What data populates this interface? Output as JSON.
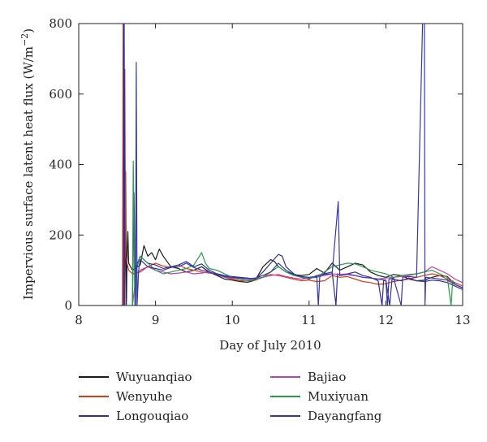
{
  "chart_data": {
    "type": "line",
    "title": "",
    "xlabel": "Day of July 2010",
    "ylabel": "Impervious surface latent heat flux (W/m",
    "ylabel_sup": "−2",
    "ylabel_close": ")",
    "xlim": [
      8,
      13
    ],
    "ylim": [
      0,
      800
    ],
    "xticks": [
      8,
      9,
      10,
      11,
      12,
      13
    ],
    "yticks": [
      0,
      200,
      400,
      600,
      800
    ],
    "xtick_labels": [
      "8",
      "9",
      "10",
      "11",
      "12",
      "13"
    ],
    "ytick_labels": [
      "0",
      "200",
      "400",
      "600",
      "800"
    ],
    "grid": false,
    "legend_position": "below",
    "series": [
      {
        "name": "Wuyuanqiao",
        "color": "#1a1a1a",
        "values": [
          [
            8.55,
            0
          ],
          [
            8.6,
            0
          ],
          [
            8.61,
            380
          ],
          [
            8.62,
            0
          ],
          [
            8.63,
            150
          ],
          [
            8.64,
            210
          ],
          [
            8.65,
            120
          ],
          [
            8.7,
            100
          ],
          [
            8.8,
            115
          ],
          [
            8.85,
            170
          ],
          [
            8.9,
            140
          ],
          [
            8.95,
            150
          ],
          [
            9.0,
            130
          ],
          [
            9.05,
            160
          ],
          [
            9.1,
            140
          ],
          [
            9.2,
            110
          ],
          [
            9.3,
            105
          ],
          [
            9.4,
            95
          ],
          [
            9.5,
            100
          ],
          [
            9.6,
            110
          ],
          [
            9.7,
            95
          ],
          [
            9.8,
            85
          ],
          [
            9.9,
            75
          ],
          [
            10.0,
            72
          ],
          [
            10.1,
            68
          ],
          [
            10.2,
            66
          ],
          [
            10.3,
            72
          ],
          [
            10.4,
            110
          ],
          [
            10.5,
            130
          ],
          [
            10.55,
            125
          ],
          [
            10.6,
            110
          ],
          [
            10.7,
            95
          ],
          [
            10.8,
            88
          ],
          [
            10.9,
            85
          ],
          [
            11.0,
            88
          ],
          [
            11.1,
            105
          ],
          [
            11.2,
            92
          ],
          [
            11.3,
            120
          ],
          [
            11.4,
            100
          ],
          [
            11.5,
            110
          ],
          [
            11.6,
            120
          ],
          [
            11.7,
            115
          ],
          [
            11.8,
            95
          ],
          [
            11.9,
            85
          ],
          [
            12.0,
            80
          ],
          [
            12.1,
            88
          ],
          [
            12.2,
            85
          ],
          [
            12.3,
            75
          ],
          [
            12.4,
            70
          ],
          [
            12.5,
            72
          ],
          [
            12.6,
            80
          ],
          [
            12.7,
            85
          ],
          [
            12.8,
            82
          ],
          [
            12.9,
            60
          ],
          [
            13.0,
            50
          ]
        ]
      },
      {
        "name": "Wenyuhe",
        "color": "#d63c1c",
        "values": [
          [
            8.55,
            0
          ],
          [
            8.57,
            0
          ],
          [
            8.58,
            1000
          ],
          [
            8.59,
            0
          ],
          [
            8.6,
            670
          ],
          [
            8.61,
            140
          ],
          [
            8.65,
            100
          ],
          [
            8.7,
            90
          ],
          [
            8.8,
            95
          ],
          [
            8.9,
            110
          ],
          [
            9.0,
            120
          ],
          [
            9.1,
            112
          ],
          [
            9.2,
            108
          ],
          [
            9.3,
            115
          ],
          [
            9.4,
            105
          ],
          [
            9.5,
            100
          ],
          [
            9.6,
            95
          ],
          [
            9.7,
            92
          ],
          [
            9.8,
            90
          ],
          [
            9.9,
            80
          ],
          [
            10.0,
            75
          ],
          [
            10.1,
            70
          ],
          [
            10.2,
            72
          ],
          [
            10.3,
            75
          ],
          [
            10.4,
            80
          ],
          [
            10.5,
            88
          ],
          [
            10.6,
            85
          ],
          [
            10.7,
            80
          ],
          [
            10.8,
            75
          ],
          [
            10.9,
            70
          ],
          [
            11.0,
            72
          ],
          [
            11.1,
            68
          ],
          [
            11.2,
            70
          ],
          [
            11.3,
            85
          ],
          [
            11.4,
            80
          ],
          [
            11.5,
            82
          ],
          [
            11.6,
            75
          ],
          [
            11.7,
            68
          ],
          [
            11.8,
            65
          ],
          [
            11.9,
            60
          ],
          [
            12.0,
            62
          ],
          [
            12.1,
            68
          ],
          [
            12.2,
            72
          ],
          [
            12.3,
            75
          ],
          [
            12.4,
            80
          ],
          [
            12.5,
            85
          ],
          [
            12.6,
            90
          ],
          [
            12.7,
            85
          ],
          [
            12.8,
            75
          ],
          [
            12.9,
            65
          ],
          [
            13.0,
            55
          ]
        ]
      },
      {
        "name": "Longouqiao",
        "color": "#2e2e9a",
        "values": [
          [
            8.55,
            0
          ],
          [
            8.58,
            0
          ],
          [
            8.59,
            1000
          ],
          [
            8.6,
            0
          ],
          [
            8.65,
            0
          ],
          [
            8.7,
            0
          ],
          [
            8.72,
            320
          ],
          [
            8.74,
            0
          ],
          [
            8.75,
            110
          ],
          [
            8.8,
            140
          ],
          [
            8.9,
            120
          ],
          [
            9.0,
            115
          ],
          [
            9.1,
            105
          ],
          [
            9.2,
            110
          ],
          [
            9.3,
            115
          ],
          [
            9.4,
            125
          ],
          [
            9.5,
            110
          ],
          [
            9.6,
            118
          ],
          [
            9.7,
            100
          ],
          [
            9.8,
            90
          ],
          [
            9.9,
            85
          ],
          [
            10.0,
            82
          ],
          [
            10.1,
            80
          ],
          [
            10.2,
            78
          ],
          [
            10.3,
            75
          ],
          [
            10.4,
            95
          ],
          [
            10.5,
            120
          ],
          [
            10.6,
            145
          ],
          [
            10.65,
            140
          ],
          [
            10.7,
            110
          ],
          [
            10.8,
            90
          ],
          [
            10.9,
            80
          ],
          [
            11.0,
            75
          ],
          [
            11.1,
            85
          ],
          [
            11.2,
            90
          ],
          [
            11.3,
            95
          ],
          [
            11.35,
            0
          ],
          [
            11.37,
            90
          ],
          [
            11.4,
            85
          ],
          [
            11.5,
            90
          ],
          [
            11.6,
            95
          ],
          [
            11.7,
            85
          ],
          [
            11.8,
            80
          ],
          [
            11.9,
            70
          ],
          [
            11.95,
            0
          ],
          [
            11.97,
            70
          ],
          [
            12.0,
            72
          ],
          [
            12.05,
            0
          ],
          [
            12.08,
            75
          ],
          [
            12.2,
            70
          ],
          [
            12.3,
            78
          ],
          [
            12.4,
            70
          ],
          [
            12.5,
            68
          ],
          [
            12.6,
            72
          ],
          [
            12.7,
            70
          ],
          [
            12.8,
            65
          ],
          [
            12.9,
            55
          ],
          [
            13.0,
            45
          ]
        ]
      },
      {
        "name": "Bajiao",
        "color": "#c040b0",
        "values": [
          [
            8.7,
            0
          ],
          [
            8.75,
            90
          ],
          [
            8.8,
            100
          ],
          [
            8.9,
            110
          ],
          [
            9.0,
            100
          ],
          [
            9.1,
            95
          ],
          [
            9.2,
            90
          ],
          [
            9.3,
            92
          ],
          [
            9.4,
            95
          ],
          [
            9.5,
            90
          ],
          [
            9.6,
            92
          ],
          [
            9.7,
            95
          ],
          [
            9.8,
            88
          ],
          [
            9.9,
            80
          ],
          [
            10.0,
            78
          ],
          [
            10.1,
            75
          ],
          [
            10.2,
            72
          ],
          [
            10.3,
            78
          ],
          [
            10.4,
            80
          ],
          [
            10.5,
            85
          ],
          [
            10.6,
            88
          ],
          [
            10.7,
            82
          ],
          [
            10.8,
            78
          ],
          [
            10.9,
            75
          ],
          [
            11.0,
            78
          ],
          [
            11.1,
            80
          ],
          [
            11.2,
            85
          ],
          [
            11.3,
            90
          ],
          [
            11.4,
            88
          ],
          [
            11.5,
            90
          ],
          [
            11.6,
            85
          ],
          [
            11.7,
            80
          ],
          [
            11.8,
            78
          ],
          [
            11.9,
            75
          ],
          [
            12.0,
            78
          ],
          [
            12.1,
            80
          ],
          [
            12.2,
            82
          ],
          [
            12.3,
            85
          ],
          [
            12.4,
            90
          ],
          [
            12.5,
            95
          ],
          [
            12.6,
            110
          ],
          [
            12.7,
            100
          ],
          [
            12.8,
            90
          ],
          [
            12.9,
            75
          ],
          [
            13.0,
            65
          ]
        ]
      },
      {
        "name": "Muxiyuan",
        "color": "#2a9a46",
        "values": [
          [
            8.6,
            0
          ],
          [
            8.65,
            0
          ],
          [
            8.7,
            0
          ],
          [
            8.71,
            410
          ],
          [
            8.73,
            0
          ],
          [
            8.75,
            100
          ],
          [
            8.8,
            140
          ],
          [
            8.9,
            120
          ],
          [
            9.0,
            100
          ],
          [
            9.1,
            90
          ],
          [
            9.2,
            95
          ],
          [
            9.3,
            100
          ],
          [
            9.4,
            105
          ],
          [
            9.5,
            115
          ],
          [
            9.6,
            150
          ],
          [
            9.65,
            120
          ],
          [
            9.7,
            105
          ],
          [
            9.8,
            100
          ],
          [
            9.9,
            90
          ],
          [
            10.0,
            80
          ],
          [
            10.1,
            75
          ],
          [
            10.2,
            70
          ],
          [
            10.3,
            72
          ],
          [
            10.4,
            80
          ],
          [
            10.5,
            95
          ],
          [
            10.6,
            110
          ],
          [
            10.7,
            95
          ],
          [
            10.8,
            85
          ],
          [
            10.9,
            80
          ],
          [
            11.0,
            78
          ],
          [
            11.1,
            80
          ],
          [
            11.2,
            95
          ],
          [
            11.3,
            110
          ],
          [
            11.4,
            115
          ],
          [
            11.5,
            120
          ],
          [
            11.6,
            118
          ],
          [
            11.7,
            110
          ],
          [
            11.8,
            100
          ],
          [
            11.9,
            95
          ],
          [
            12.0,
            90
          ],
          [
            12.1,
            80
          ],
          [
            12.2,
            85
          ],
          [
            12.3,
            88
          ],
          [
            12.4,
            90
          ],
          [
            12.5,
            95
          ],
          [
            12.6,
            100
          ],
          [
            12.7,
            90
          ],
          [
            12.8,
            80
          ],
          [
            12.85,
            0
          ],
          [
            12.87,
            70
          ],
          [
            12.9,
            60
          ],
          [
            13.0,
            50
          ]
        ]
      },
      {
        "name": "Dayangfang",
        "color": "#3636a8",
        "values": [
          [
            8.7,
            0
          ],
          [
            8.74,
            0
          ],
          [
            8.75,
            690
          ],
          [
            8.76,
            0
          ],
          [
            8.78,
            100
          ],
          [
            8.8,
            130
          ],
          [
            8.9,
            110
          ],
          [
            9.0,
            105
          ],
          [
            9.1,
            100
          ],
          [
            9.2,
            108
          ],
          [
            9.3,
            110
          ],
          [
            9.4,
            120
          ],
          [
            9.5,
            108
          ],
          [
            9.6,
            100
          ],
          [
            9.7,
            95
          ],
          [
            9.8,
            88
          ],
          [
            9.9,
            82
          ],
          [
            10.0,
            80
          ],
          [
            10.1,
            78
          ],
          [
            10.2,
            76
          ],
          [
            10.3,
            78
          ],
          [
            10.4,
            85
          ],
          [
            10.5,
            95
          ],
          [
            10.6,
            120
          ],
          [
            10.7,
            100
          ],
          [
            10.8,
            88
          ],
          [
            10.9,
            82
          ],
          [
            11.0,
            80
          ],
          [
            11.1,
            82
          ],
          [
            11.12,
            0
          ],
          [
            11.14,
            85
          ],
          [
            11.2,
            88
          ],
          [
            11.3,
            90
          ],
          [
            11.38,
            295
          ],
          [
            11.4,
            85
          ],
          [
            11.5,
            88
          ],
          [
            11.6,
            85
          ],
          [
            11.7,
            80
          ],
          [
            11.8,
            78
          ],
          [
            11.9,
            75
          ],
          [
            12.0,
            72
          ],
          [
            12.02,
            0
          ],
          [
            12.04,
            75
          ],
          [
            12.1,
            78
          ],
          [
            12.2,
            0
          ],
          [
            12.22,
            80
          ],
          [
            12.3,
            82
          ],
          [
            12.4,
            80
          ],
          [
            12.5,
            1000
          ],
          [
            12.51,
            0
          ],
          [
            12.52,
            80
          ],
          [
            12.6,
            78
          ],
          [
            12.7,
            75
          ],
          [
            12.8,
            72
          ],
          [
            12.9,
            60
          ],
          [
            13.0,
            50
          ]
        ]
      }
    ]
  }
}
